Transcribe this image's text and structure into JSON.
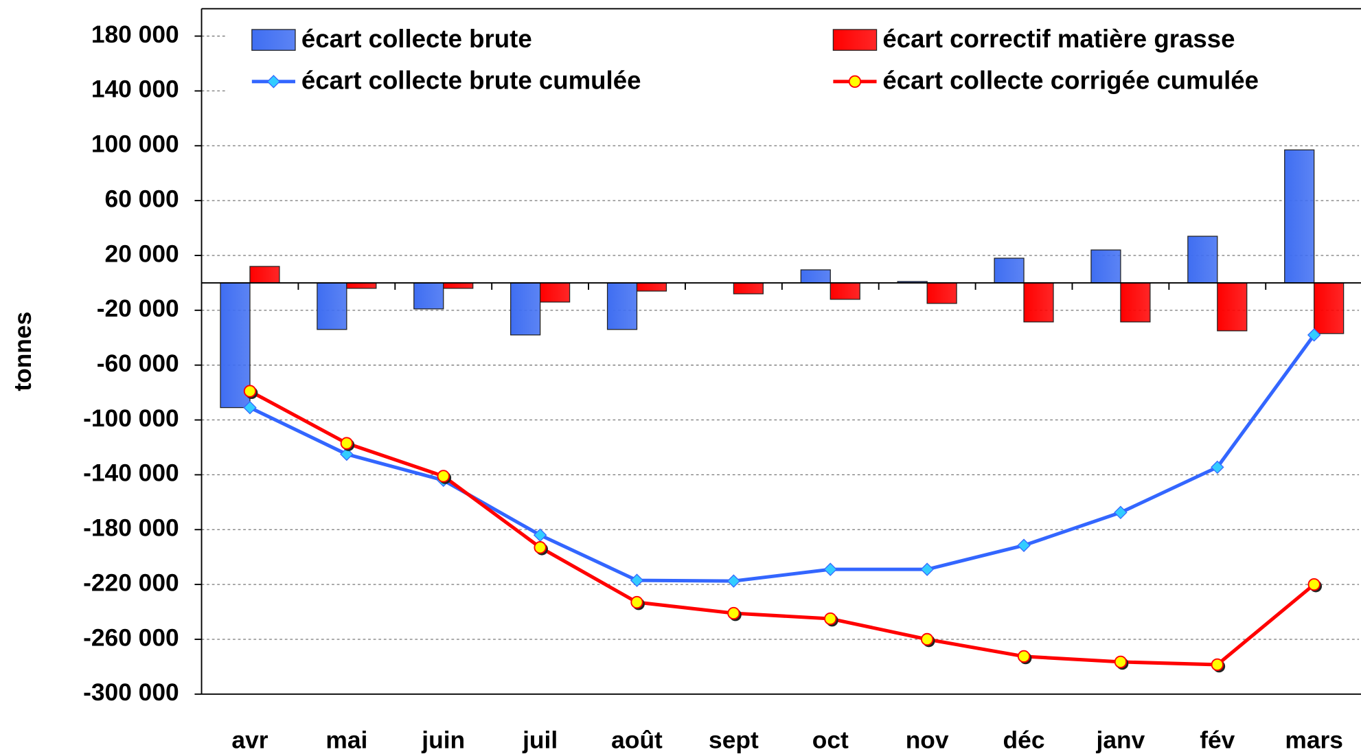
{
  "chart_data": {
    "type": "bar",
    "y_label": "tonnes",
    "categories": [
      "avr",
      "mai",
      "juin",
      "juil",
      "août",
      "sept",
      "oct",
      "nov",
      "déc",
      "janv",
      "fév",
      "mars"
    ],
    "series": [
      {
        "name": "écart collecte brute",
        "type": "bar",
        "color": "#3f6ef2",
        "values": [
          -91000,
          -34000,
          -19000,
          -38000,
          -34000,
          0,
          9500,
          1000,
          18000,
          24000,
          34000,
          97000
        ]
      },
      {
        "name": "écart correctif matière grasse",
        "type": "bar",
        "color": "#ff0000",
        "values": [
          12000,
          -4000,
          -4000,
          -14000,
          -6000,
          -8000,
          -12000,
          -15000,
          -28500,
          -28500,
          -35000,
          -37000
        ]
      },
      {
        "name": "écart collecte brute cumulée",
        "type": "line",
        "color": "#3366ff",
        "marker_color": "#33ccff",
        "values": [
          -91000,
          -125000,
          -144000,
          -184000,
          -217000,
          -217500,
          -209000,
          -209000,
          -191500,
          -167500,
          -134500,
          -38000
        ]
      },
      {
        "name": "écart collecte corrigée cumulée",
        "type": "line",
        "color": "#ff0000",
        "marker_color": "#ffff00",
        "values": [
          -79000,
          -117000,
          -141000,
          -193000,
          -233000,
          -241000,
          -245000,
          -260000,
          -272500,
          -276500,
          -278500,
          -220000
        ]
      }
    ],
    "ylim": [
      -300000,
      200000
    ],
    "yticks": [
      {
        "value": -300000,
        "label": "-300 000"
      },
      {
        "value": -260000,
        "label": "-260 000"
      },
      {
        "value": -220000,
        "label": "-220 000"
      },
      {
        "value": -180000,
        "label": "-180 000"
      },
      {
        "value": -140000,
        "label": "-140 000"
      },
      {
        "value": -100000,
        "label": "-100 000"
      },
      {
        "value": -60000,
        "label": "-60 000"
      },
      {
        "value": -20000,
        "label": "-20 000"
      },
      {
        "value": 20000,
        "label": "20 000"
      },
      {
        "value": 60000,
        "label": "60 000"
      },
      {
        "value": 100000,
        "label": "100 000"
      },
      {
        "value": 140000,
        "label": "140 000"
      },
      {
        "value": 180000,
        "label": "180 000"
      }
    ],
    "grid": true
  }
}
